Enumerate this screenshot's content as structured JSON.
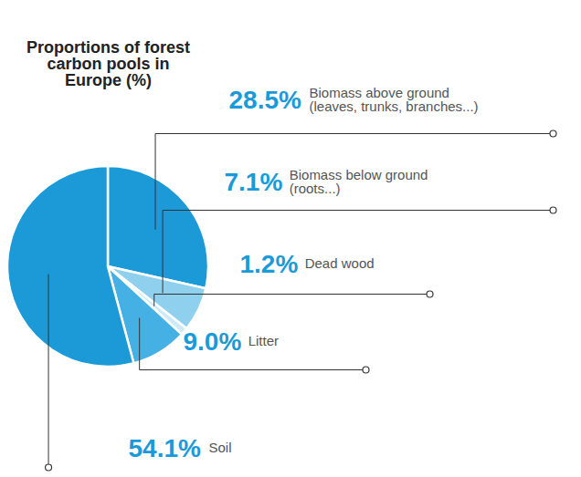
{
  "chart_data": {
    "type": "pie",
    "title": "Proportions of forest carbon pools in Europe (%)",
    "categories": [
      "Biomass above ground (leaves, trunks, branches...)",
      "Biomass below ground (roots...)",
      "Dead wood",
      "Litter",
      "Soil"
    ],
    "values": [
      28.5,
      7.1,
      1.2,
      9.0,
      54.1
    ],
    "value_labels": [
      "28.5%",
      "7.1%",
      "1.2%",
      "9.0%",
      "54.1%"
    ],
    "colors": [
      "#1b9ad7",
      "#8fd0ef",
      "#cdeaf8",
      "#45b0e3",
      "#1b9ad7"
    ],
    "data_labels": true
  }
}
